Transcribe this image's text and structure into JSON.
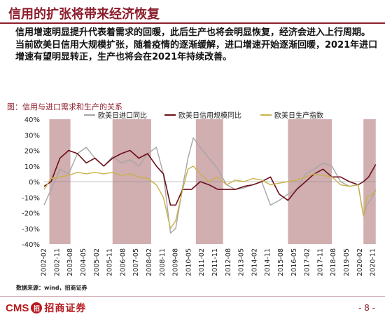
{
  "header": {
    "title": "信用的扩张将带来经济恢复"
  },
  "paragraph": "信用增速明显提升代表着需求的回暖，此后生产也将会明显恢复，经济会进入上行周期。当前欧美日信用大规模扩张，随着疫情的逐渐缓解，进口增速开始逐渐回暖，2021年进口增速有望明显转正，生产也将会在2021年持续改善。",
  "chart_title": "图：信用与进口需求和生产的关系",
  "source": "数据来源：wind，招商证券",
  "footer": {
    "logo_text": "CMS",
    "logo_mark": "招",
    "logo_cn": "招商证券",
    "page": "- 8 -"
  },
  "colors": {
    "import": "#a6a6a6",
    "credit": "#6b0f1a",
    "production": "#c9b24a",
    "shade": "#c9a0a2"
  },
  "chart_data": {
    "type": "line",
    "title": "",
    "ylim": [
      -40,
      40
    ],
    "yticks": [
      "40%",
      "30%",
      "20%",
      "10%",
      "0%",
      "-10%",
      "-20%",
      "-30%",
      "-40%"
    ],
    "xticks": [
      "2002-02",
      "2002-11",
      "2003-08",
      "2004-05",
      "2005-02",
      "2005-11",
      "2006-08",
      "2007-05",
      "2008-02",
      "2008-11",
      "2009-08",
      "2010-05",
      "2011-02",
      "2011-11",
      "2012-08",
      "2013-05",
      "2014-02",
      "2014-11",
      "2015-08",
      "2016-05",
      "2017-02",
      "2017-11",
      "2018-08",
      "2019-05",
      "2020-02",
      "2020-11"
    ],
    "legend": [
      "欧美日进口同比",
      "欧美日信用规模同比",
      "欧美日生产指数"
    ],
    "legend_position": "top",
    "shaded_periods": [
      [
        2002.4,
        2003.6
      ],
      [
        2006.0,
        2008.2
      ],
      [
        2010.75,
        2012.3
      ],
      [
        2016.0,
        2018.5
      ],
      [
        2020.3,
        2021.0
      ]
    ],
    "series": [
      {
        "name": "欧美日进口同比",
        "x": [
          2002.1,
          2002.5,
          2003.0,
          2003.5,
          2004.0,
          2004.5,
          2005.0,
          2005.5,
          2006.0,
          2006.5,
          2007.0,
          2007.5,
          2008.0,
          2008.5,
          2008.9,
          2009.3,
          2009.6,
          2010.0,
          2010.3,
          2010.6,
          2011.0,
          2011.5,
          2012.0,
          2012.5,
          2013.0,
          2013.5,
          2014.0,
          2014.5,
          2015.0,
          2015.5,
          2016.0,
          2016.5,
          2017.0,
          2017.5,
          2018.0,
          2018.5,
          2019.0,
          2019.5,
          2020.0,
          2020.3,
          2020.5,
          2020.8,
          2021.0
        ],
        "y": [
          -15,
          -5,
          8,
          5,
          18,
          22,
          15,
          10,
          16,
          12,
          14,
          10,
          18,
          22,
          5,
          -33,
          -30,
          -3,
          15,
          28,
          22,
          15,
          8,
          -2,
          -5,
          -4,
          -2,
          0,
          -15,
          -12,
          -8,
          -5,
          5,
          8,
          12,
          10,
          0,
          -3,
          -2,
          -22,
          -15,
          -10,
          -5
        ]
      },
      {
        "name": "欧美日信用规模同比",
        "x": [
          2002.1,
          2002.5,
          2003.0,
          2003.5,
          2004.0,
          2004.5,
          2005.0,
          2005.5,
          2006.0,
          2006.5,
          2007.0,
          2007.5,
          2008.0,
          2008.5,
          2008.9,
          2009.3,
          2009.6,
          2010.0,
          2010.5,
          2011.0,
          2011.5,
          2012.0,
          2012.5,
          2013.0,
          2013.5,
          2014.0,
          2014.5,
          2015.0,
          2015.5,
          2016.0,
          2016.5,
          2017.0,
          2017.5,
          2018.0,
          2018.5,
          2019.0,
          2019.5,
          2020.0,
          2020.3,
          2020.6,
          2020.9,
          2021.0
        ],
        "y": [
          -3,
          0,
          15,
          20,
          18,
          12,
          15,
          10,
          15,
          18,
          20,
          15,
          18,
          10,
          5,
          -15,
          -15,
          -5,
          -5,
          0,
          -2,
          -5,
          -5,
          -5,
          -3,
          -2,
          0,
          3,
          -8,
          -12,
          -5,
          0,
          5,
          8,
          3,
          3,
          0,
          -2,
          0,
          3,
          9,
          11
        ]
      },
      {
        "name": "欧美日生产指数",
        "x": [
          2002.1,
          2002.5,
          2003.0,
          2003.5,
          2004.0,
          2004.5,
          2005.0,
          2005.5,
          2006.0,
          2006.5,
          2007.0,
          2007.5,
          2008.0,
          2008.5,
          2008.9,
          2009.3,
          2009.6,
          2010.0,
          2010.3,
          2010.6,
          2011.0,
          2011.5,
          2012.0,
          2012.5,
          2013.0,
          2013.5,
          2014.0,
          2014.5,
          2015.0,
          2015.5,
          2016.0,
          2016.5,
          2017.0,
          2017.5,
          2018.0,
          2018.5,
          2019.0,
          2019.5,
          2020.0,
          2020.3,
          2020.5,
          2020.8,
          2021.0
        ],
        "y": [
          -5,
          2,
          3,
          4,
          6,
          5,
          6,
          5,
          6,
          4,
          5,
          3,
          2,
          -2,
          -10,
          -30,
          -25,
          -5,
          8,
          10,
          5,
          0,
          3,
          -2,
          1,
          0,
          2,
          1,
          -2,
          -1,
          0,
          1,
          3,
          5,
          4,
          3,
          -2,
          -3,
          -2,
          -22,
          -10,
          -8,
          -6
        ]
      }
    ]
  }
}
